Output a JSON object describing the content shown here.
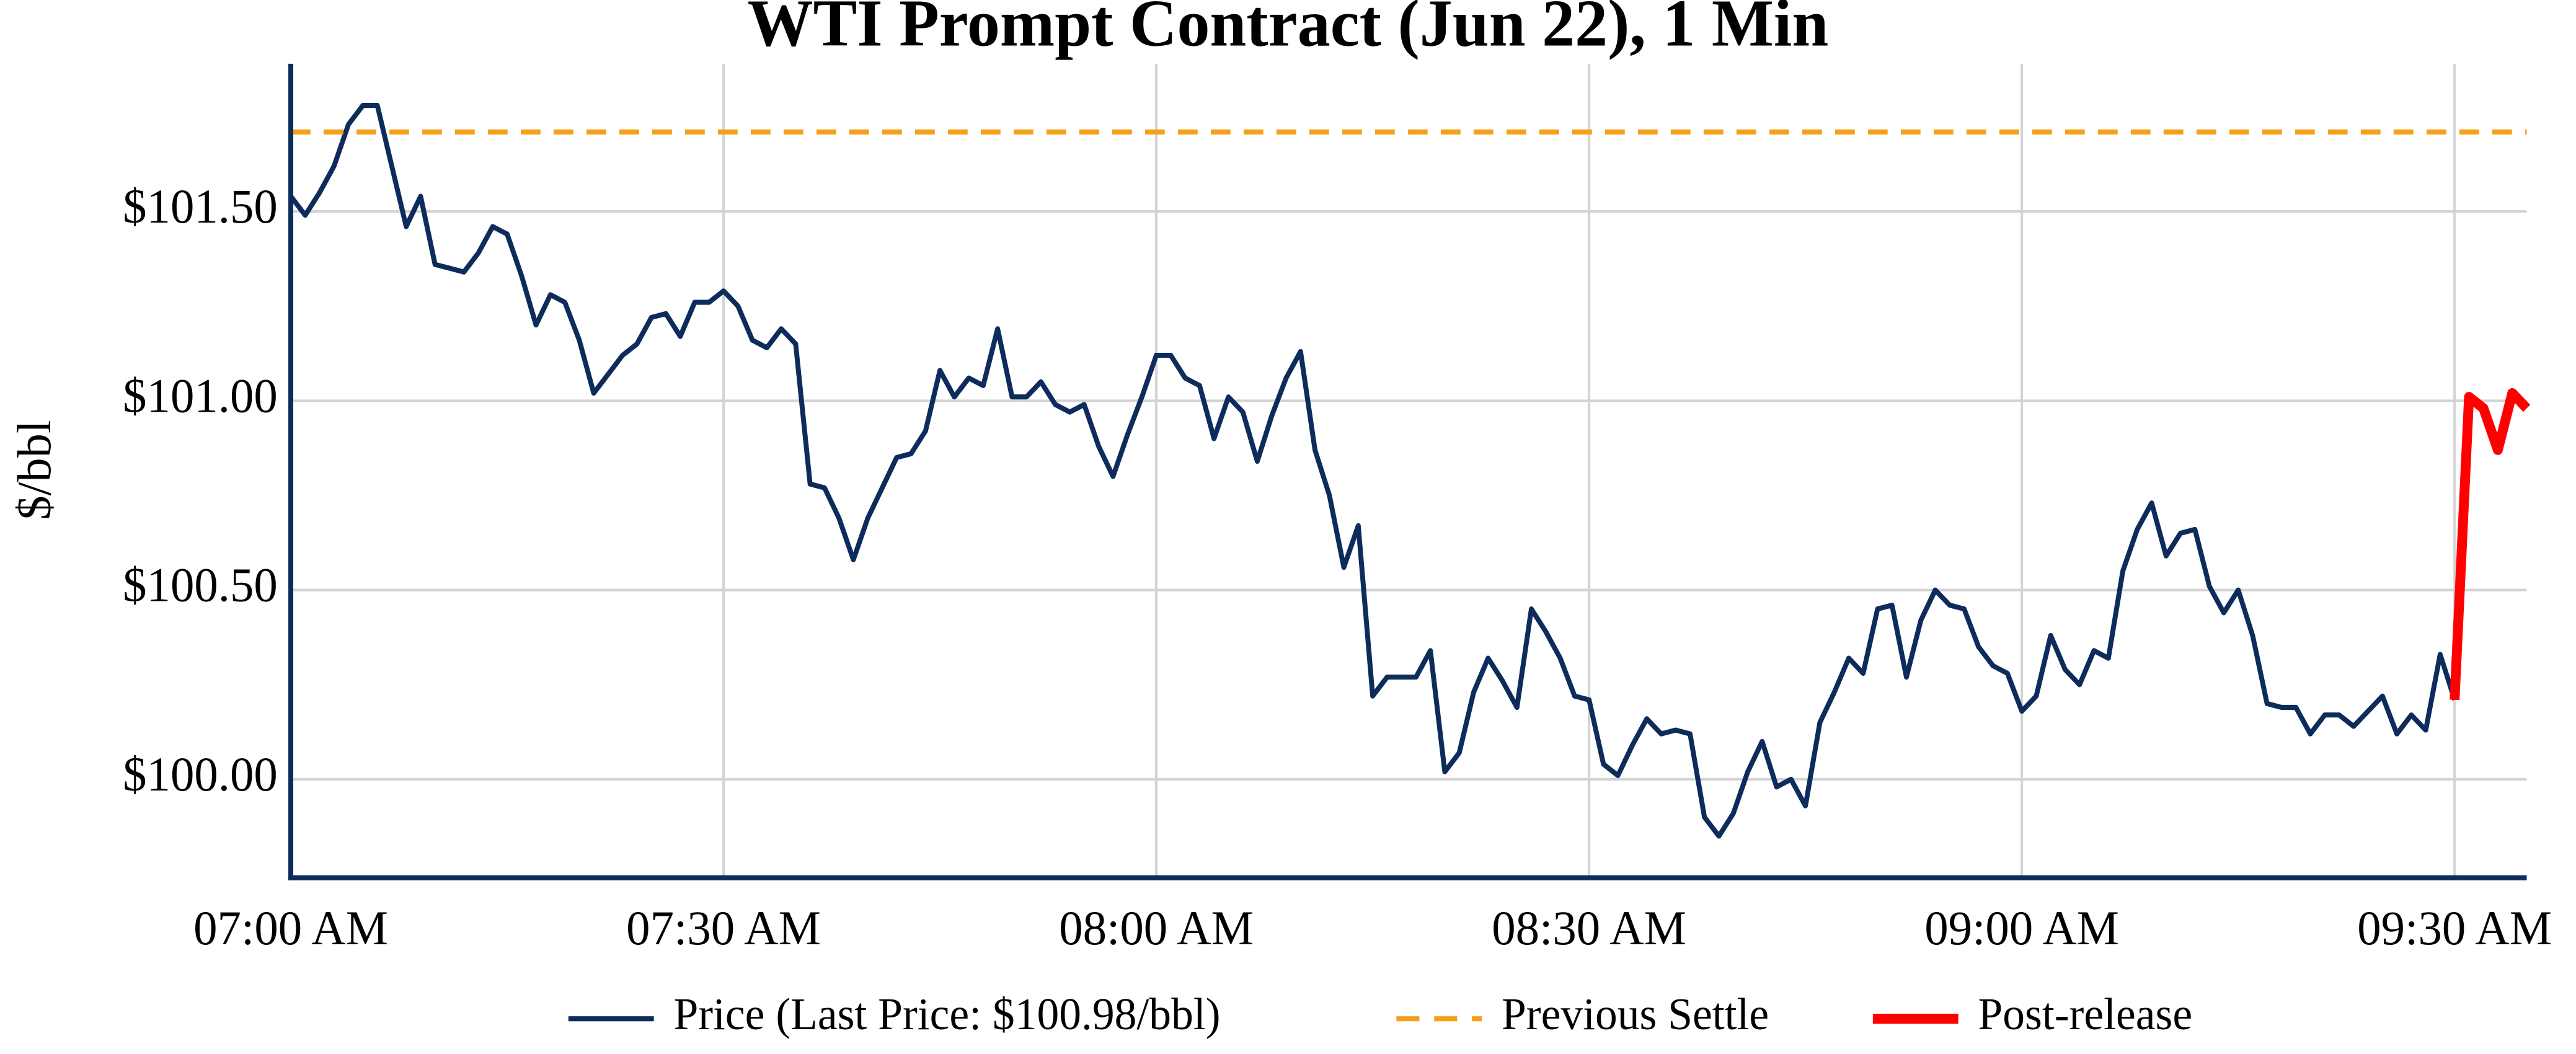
{
  "chart_data": {
    "type": "line",
    "title": "WTI Prompt Contract (Jun 22), 1 Min",
    "y_label": "$/bbl",
    "xlim": [
      "07:00 AM",
      "09:35 AM"
    ],
    "xticks": [
      "07:00 AM",
      "07:30 AM",
      "08:00 AM",
      "08:30 AM",
      "09:00 AM",
      "09:30 AM"
    ],
    "ylim": [
      99.74,
      101.89
    ],
    "yticks": [
      {
        "value": 100,
        "label": "$100.00"
      },
      {
        "value": 100.5,
        "label": "$100.50"
      },
      {
        "value": 101,
        "label": "$101.00"
      },
      {
        "value": 101.5,
        "label": "$101.50"
      }
    ],
    "grid": true,
    "legend": "bottom",
    "series": [
      {
        "name": "Price (Last Price: $100.98/bbl)",
        "color": "#0d2c5c",
        "x": [
          "07:00 AM",
          "07:01 AM",
          "07:02 AM",
          "07:03 AM",
          "07:04 AM",
          "07:05 AM",
          "07:06 AM",
          "07:07 AM",
          "07:08 AM",
          "07:09 AM",
          "07:10 AM",
          "07:11 AM",
          "07:12 AM",
          "07:13 AM",
          "07:14 AM",
          "07:15 AM",
          "07:16 AM",
          "07:17 AM",
          "07:18 AM",
          "07:19 AM",
          "07:20 AM",
          "07:21 AM",
          "07:22 AM",
          "07:23 AM",
          "07:24 AM",
          "07:25 AM",
          "07:26 AM",
          "07:27 AM",
          "07:28 AM",
          "07:29 AM",
          "07:30 AM",
          "07:31 AM",
          "07:32 AM",
          "07:33 AM",
          "07:34 AM",
          "07:35 AM",
          "07:36 AM",
          "07:37 AM",
          "07:38 AM",
          "07:39 AM",
          "07:40 AM",
          "07:41 AM",
          "07:42 AM",
          "07:43 AM",
          "07:44 AM",
          "07:45 AM",
          "07:46 AM",
          "07:47 AM",
          "07:48 AM",
          "07:49 AM",
          "07:50 AM",
          "07:51 AM",
          "07:52 AM",
          "07:53 AM",
          "07:54 AM",
          "07:55 AM",
          "07:56 AM",
          "07:57 AM",
          "07:58 AM",
          "07:59 AM",
          "08:00 AM",
          "08:01 AM",
          "08:02 AM",
          "08:03 AM",
          "08:04 AM",
          "08:05 AM",
          "08:06 AM",
          "08:07 AM",
          "08:08 AM",
          "08:09 AM",
          "08:10 AM",
          "08:11 AM",
          "08:12 AM",
          "08:13 AM",
          "08:14 AM",
          "08:15 AM",
          "08:16 AM",
          "08:17 AM",
          "08:18 AM",
          "08:19 AM",
          "08:20 AM",
          "08:21 AM",
          "08:22 AM",
          "08:23 AM",
          "08:24 AM",
          "08:25 AM",
          "08:26 AM",
          "08:27 AM",
          "08:28 AM",
          "08:29 AM",
          "08:30 AM",
          "08:31 AM",
          "08:32 AM",
          "08:33 AM",
          "08:34 AM",
          "08:35 AM",
          "08:36 AM",
          "08:37 AM",
          "08:38 AM",
          "08:39 AM",
          "08:40 AM",
          "08:41 AM",
          "08:42 AM",
          "08:43 AM",
          "08:44 AM",
          "08:45 AM",
          "08:46 AM",
          "08:47 AM",
          "08:48 AM",
          "08:49 AM",
          "08:50 AM",
          "08:51 AM",
          "08:52 AM",
          "08:53 AM",
          "08:54 AM",
          "08:55 AM",
          "08:56 AM",
          "08:57 AM",
          "08:58 AM",
          "08:59 AM",
          "09:00 AM",
          "09:01 AM",
          "09:02 AM",
          "09:03 AM",
          "09:04 AM",
          "09:05 AM",
          "09:06 AM",
          "09:07 AM",
          "09:08 AM",
          "09:09 AM",
          "09:10 AM",
          "09:11 AM",
          "09:12 AM",
          "09:13 AM",
          "09:14 AM",
          "09:15 AM",
          "09:16 AM",
          "09:17 AM",
          "09:18 AM",
          "09:19 AM",
          "09:20 AM",
          "09:21 AM",
          "09:22 AM",
          "09:23 AM",
          "09:24 AM",
          "09:25 AM",
          "09:26 AM",
          "09:27 AM",
          "09:28 AM",
          "09:29 AM",
          "09:30 AM"
        ],
        "values": [
          101.54,
          101.49,
          101.55,
          101.62,
          101.73,
          101.78,
          101.78,
          101.62,
          101.46,
          101.54,
          101.36,
          101.35,
          101.34,
          101.39,
          101.46,
          101.44,
          101.33,
          101.2,
          101.28,
          101.26,
          101.16,
          101.02,
          101.07,
          101.12,
          101.15,
          101.22,
          101.23,
          101.17,
          101.26,
          101.26,
          101.29,
          101.25,
          101.16,
          101.14,
          101.19,
          101.15,
          100.78,
          100.77,
          100.69,
          100.58,
          100.69,
          100.77,
          100.85,
          100.86,
          100.92,
          101.08,
          101.01,
          101.06,
          101.04,
          101.19,
          101.01,
          101.01,
          101.05,
          100.99,
          100.97,
          100.99,
          100.88,
          100.8,
          100.91,
          101.01,
          101.12,
          101.12,
          101.06,
          101.04,
          100.9,
          101.01,
          100.97,
          100.84,
          100.96,
          101.06,
          101.13,
          100.87,
          100.75,
          100.56,
          100.67,
          100.22,
          100.27,
          100.27,
          100.27,
          100.34,
          100.02,
          100.07,
          100.23,
          100.32,
          100.26,
          100.19,
          100.45,
          100.39,
          100.32,
          100.22,
          100.21,
          100.04,
          100.01,
          100.09,
          100.16,
          100.12,
          100.13,
          100.12,
          99.9,
          99.85,
          99.91,
          100.02,
          100.1,
          99.98,
          100.0,
          99.93,
          100.15,
          100.23,
          100.32,
          100.28,
          100.45,
          100.46,
          100.27,
          100.42,
          100.5,
          100.46,
          100.45,
          100.35,
          100.3,
          100.28,
          100.18,
          100.22,
          100.38,
          100.29,
          100.25,
          100.34,
          100.32,
          100.55,
          100.66,
          100.73,
          100.59,
          100.65,
          100.66,
          100.51,
          100.44,
          100.5,
          100.38,
          100.2,
          100.19,
          100.19,
          100.12,
          100.17,
          100.17,
          100.14,
          100.18,
          100.22,
          100.12,
          100.17,
          100.13,
          100.33,
          100.21
        ]
      },
      {
        "name": "Previous Settle",
        "color": "#f5a01a",
        "dash": true,
        "value": 101.71
      },
      {
        "name": "Post-release",
        "color": "#ff0000",
        "x": [
          "09:30 AM",
          "09:31 AM",
          "09:32 AM",
          "09:33 AM",
          "09:34 AM",
          "09:35 AM"
        ],
        "values": [
          100.21,
          101.01,
          100.98,
          100.87,
          101.02,
          100.98
        ]
      }
    ]
  }
}
